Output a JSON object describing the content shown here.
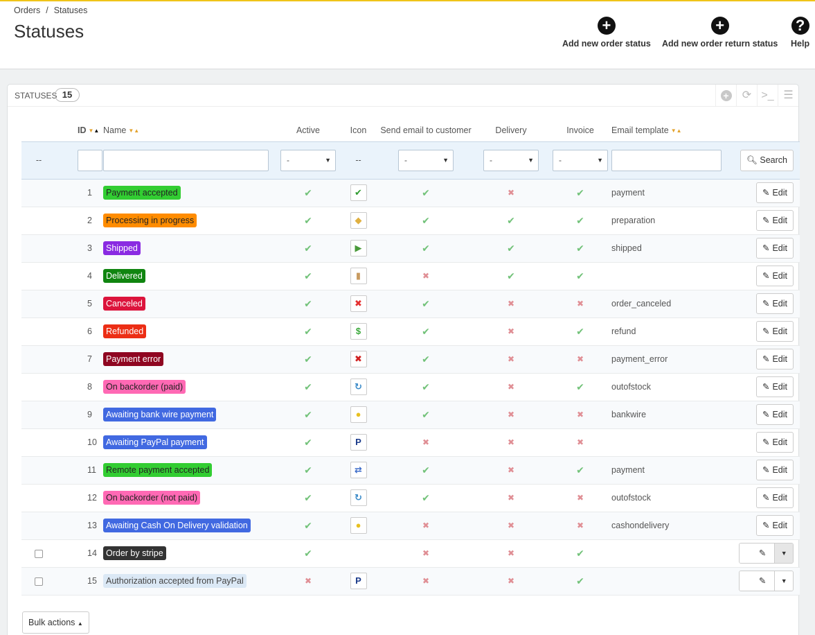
{
  "breadcrumb": {
    "parent": "Orders",
    "separator": "/",
    "current": "Statuses"
  },
  "page_title": "Statuses",
  "toolbar": {
    "add_status": "Add new order status",
    "add_return_status": "Add new order return status",
    "help": "Help",
    "add_icon": "+",
    "help_icon": "?"
  },
  "panel": {
    "title": "STATUSES",
    "count": "15"
  },
  "columns": {
    "id": "ID",
    "name": "Name",
    "active": "Active",
    "icon": "Icon",
    "send_email": "Send email to customer",
    "delivery": "Delivery",
    "invoice": "Invoice",
    "email_template": "Email template"
  },
  "filters": {
    "dash": "--",
    "icon_dash": "--",
    "select_value": "-",
    "search_label": "Search"
  },
  "edit_label": "Edit",
  "bulk_label": "Bulk actions",
  "colors": {
    "check": "#72c279",
    "cross": "#e08f95",
    "accent": "#f0c419"
  },
  "rows": [
    {
      "id": "1",
      "name": "Payment accepted",
      "color": "#32cd32",
      "text": "#222",
      "active": "check",
      "icon": "✔",
      "icon_color": "#2e9b2e",
      "send_email": "check",
      "delivery": "cross",
      "invoice": "check",
      "template": "payment",
      "checkbox": false,
      "split": false
    },
    {
      "id": "2",
      "name": "Processing in progress",
      "color": "#ff8c00",
      "text": "#222",
      "active": "check",
      "icon": "◆",
      "icon_color": "#e0b040",
      "send_email": "check",
      "delivery": "check",
      "invoice": "check",
      "template": "preparation",
      "checkbox": false,
      "split": false
    },
    {
      "id": "3",
      "name": "Shipped",
      "color": "#8a2be2",
      "text": "#fff",
      "active": "check",
      "icon": "▶",
      "icon_color": "#4a9a3a",
      "send_email": "check",
      "delivery": "check",
      "invoice": "check",
      "template": "shipped",
      "checkbox": false,
      "split": false
    },
    {
      "id": "4",
      "name": "Delivered",
      "color": "#108510",
      "text": "#fff",
      "active": "check",
      "icon": "▮",
      "icon_color": "#c89a60",
      "send_email": "cross",
      "delivery": "check",
      "invoice": "check",
      "template": "",
      "checkbox": false,
      "split": false
    },
    {
      "id": "5",
      "name": "Canceled",
      "color": "#dc143c",
      "text": "#fff",
      "active": "check",
      "icon": "✖",
      "icon_color": "#e53030",
      "send_email": "check",
      "delivery": "cross",
      "invoice": "cross",
      "template": "order_canceled",
      "checkbox": false,
      "split": false
    },
    {
      "id": "6",
      "name": "Refunded",
      "color": "#ec2e15",
      "text": "#fff",
      "active": "check",
      "icon": "$",
      "icon_color": "#3aa83a",
      "send_email": "check",
      "delivery": "cross",
      "invoice": "check",
      "template": "refund",
      "checkbox": false,
      "split": false
    },
    {
      "id": "7",
      "name": "Payment error",
      "color": "#8f0621",
      "text": "#fff",
      "active": "check",
      "icon": "✖",
      "icon_color": "#d02020",
      "send_email": "check",
      "delivery": "cross",
      "invoice": "cross",
      "template": "payment_error",
      "checkbox": false,
      "split": false
    },
    {
      "id": "8",
      "name": "On backorder (paid)",
      "color": "#ff69b4",
      "text": "#222",
      "active": "check",
      "icon": "↻",
      "icon_color": "#3a8ac8",
      "send_email": "check",
      "delivery": "cross",
      "invoice": "check",
      "template": "outofstock",
      "checkbox": false,
      "split": false
    },
    {
      "id": "9",
      "name": "Awaiting bank wire payment",
      "color": "#4169e1",
      "text": "#fff",
      "active": "check",
      "icon": "●",
      "icon_color": "#e8c020",
      "send_email": "check",
      "delivery": "cross",
      "invoice": "cross",
      "template": "bankwire",
      "checkbox": false,
      "split": false
    },
    {
      "id": "10",
      "name": "Awaiting PayPal payment",
      "color": "#4169e1",
      "text": "#fff",
      "active": "check",
      "icon": "P",
      "icon_color": "#1a3a8a",
      "send_email": "cross",
      "delivery": "cross",
      "invoice": "cross",
      "template": "",
      "checkbox": false,
      "split": false
    },
    {
      "id": "11",
      "name": "Remote payment accepted",
      "color": "#32cd32",
      "text": "#222",
      "active": "check",
      "icon": "⇄",
      "icon_color": "#3a6ac8",
      "send_email": "check",
      "delivery": "cross",
      "invoice": "check",
      "template": "payment",
      "checkbox": false,
      "split": false
    },
    {
      "id": "12",
      "name": "On backorder (not paid)",
      "color": "#ff69b4",
      "text": "#222",
      "active": "check",
      "icon": "↻",
      "icon_color": "#3a8ac8",
      "send_email": "check",
      "delivery": "cross",
      "invoice": "cross",
      "template": "outofstock",
      "checkbox": false,
      "split": false
    },
    {
      "id": "13",
      "name": "Awaiting Cash On Delivery validation",
      "color": "#4169e1",
      "text": "#fff",
      "active": "check",
      "icon": "●",
      "icon_color": "#e8c020",
      "send_email": "cross",
      "delivery": "cross",
      "invoice": "cross",
      "template": "cashondelivery",
      "checkbox": false,
      "split": false
    },
    {
      "id": "14",
      "name": "Order by stripe",
      "color": "#333333",
      "text": "#fff",
      "active": "check",
      "icon": "",
      "icon_color": "",
      "send_email": "cross",
      "delivery": "cross",
      "invoice": "check",
      "template": "",
      "checkbox": true,
      "split": true,
      "split_pressed": true
    },
    {
      "id": "15",
      "name": "Authorization accepted from PayPal",
      "color": "#dbe8f5",
      "text": "#444",
      "active": "cross",
      "icon": "P",
      "icon_color": "#1a3a8a",
      "send_email": "cross",
      "delivery": "cross",
      "invoice": "check",
      "template": "",
      "checkbox": true,
      "split": true,
      "split_pressed": false
    }
  ]
}
